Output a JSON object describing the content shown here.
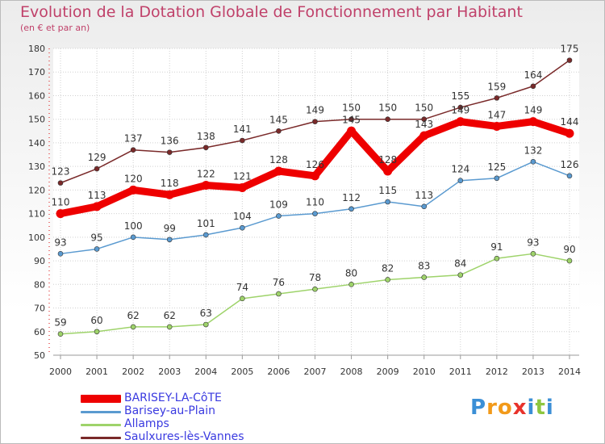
{
  "header": {
    "title": "Evolution de la Dotation Globale de Fonctionnement par Habitant",
    "subtitle": "(en € et par an)"
  },
  "logo": {
    "text": "Proxiti",
    "letters": [
      "P",
      "r",
      "o",
      "x",
      "i",
      "t",
      "i"
    ],
    "colors": [
      "#3b8fd6",
      "#f29a1a",
      "#f29a1a",
      "#e8322b",
      "#3b8fd6",
      "#8dc63f",
      "#3b8fd6"
    ]
  },
  "chart_data": {
    "type": "line",
    "title": "Evolution de la Dotation Globale de Fonctionnement par Habitant",
    "ylabel": "(en € et par an)",
    "xlabel": "",
    "ylim": [
      50,
      180
    ],
    "yticks": [
      50,
      60,
      70,
      80,
      90,
      100,
      110,
      120,
      130,
      140,
      150,
      160,
      170,
      180
    ],
    "grid": true,
    "x": [
      "2000",
      "2001",
      "2002",
      "2003",
      "2004",
      "2005",
      "2006",
      "2007",
      "2008",
      "2009",
      "2010",
      "2011",
      "2012",
      "2013",
      "2014"
    ],
    "series": [
      {
        "name": "Saulxures-lès-Vannes",
        "color": "#7a2a2a",
        "values": [
          123,
          129,
          137,
          136,
          138,
          141,
          145,
          149,
          150,
          150,
          150,
          155,
          159,
          164,
          175
        ]
      },
      {
        "name": "Barisey-au-Plain",
        "color": "#5a9ad0",
        "values": [
          93,
          95,
          100,
          99,
          101,
          104,
          109,
          110,
          112,
          115,
          113,
          124,
          125,
          132,
          126
        ]
      },
      {
        "name": "Allamps",
        "color": "#9ed36a",
        "values": [
          59,
          60,
          62,
          62,
          63,
          74,
          76,
          78,
          80,
          82,
          83,
          84,
          91,
          93,
          90
        ]
      },
      {
        "name": "BARISEY-LA-CôTE",
        "color": "#ee0000",
        "values": [
          110,
          113,
          120,
          118,
          122,
          121,
          128,
          126,
          145,
          128,
          143,
          149,
          147,
          149,
          144
        ]
      }
    ],
    "legend_order": [
      "BARISEY-LA-CôTE",
      "Barisey-au-Plain",
      "Allamps",
      "Saulxures-lès-Vannes"
    ]
  }
}
